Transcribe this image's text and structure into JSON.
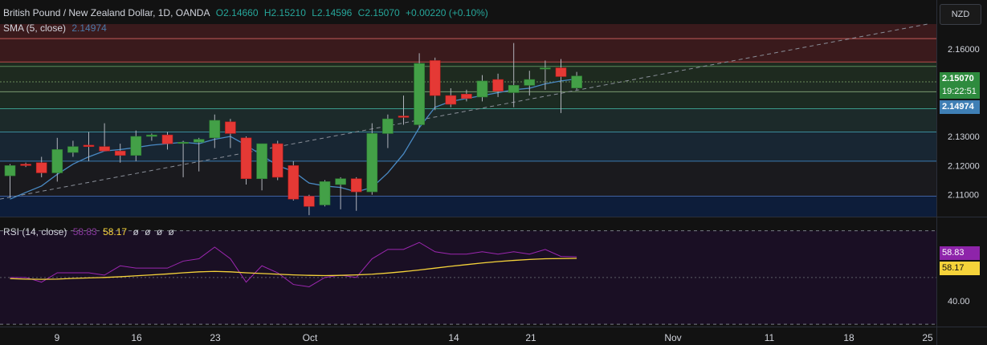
{
  "header": {
    "title": "British Pound / New Zealand Dollar, 1D, OANDA",
    "open": "O2.14660",
    "high": "H2.15210",
    "low": "L2.14596",
    "close": "C2.15070",
    "change": "+0.00220 (+0.10%)",
    "sma_label": "SMA (5, close)",
    "sma_value": "2.14974"
  },
  "currency_button": "NZD",
  "price_labels": {
    "last": "2.15070",
    "countdown": "19:22:51",
    "sma": "2.14974",
    "rsi": "58.83",
    "rsi_ma": "58.17"
  },
  "rsi_header": {
    "label": "RSI (14, close)",
    "value": "58.83",
    "ma_value": "58.17",
    "extras": [
      "ø",
      "ø",
      "ø",
      "ø"
    ]
  },
  "colors": {
    "up": "#26a69a",
    "up_fill": "#43a047",
    "down": "#e53935",
    "sma": "#4a8ac4",
    "rsi": "#9c27b0",
    "rsi_ma": "#f5d33a",
    "background": "#121212"
  },
  "chart_data": [
    {
      "type": "candlestick",
      "title": "British Pound / New Zealand Dollar, 1D, OANDA",
      "ylim": [
        2.1025,
        2.1685
      ],
      "y_ticks": [
        "2.16000",
        "2.15000",
        "2.13000",
        "2.12000",
        "2.11000"
      ],
      "x_ticks": [
        "9",
        "16",
        "23",
        "Oct",
        "14",
        "21",
        "Nov",
        "11",
        "18",
        "25"
      ],
      "candles": [
        {
          "o": 2.1165,
          "h": 2.1205,
          "l": 2.109,
          "c": 2.12
        },
        {
          "o": 2.1205,
          "h": 2.121,
          "l": 2.1195,
          "c": 2.12
        },
        {
          "o": 2.121,
          "h": 2.123,
          "l": 2.116,
          "c": 2.1175
        },
        {
          "o": 2.1175,
          "h": 2.1295,
          "l": 2.1145,
          "c": 2.1255
        },
        {
          "o": 2.1245,
          "h": 2.1285,
          "l": 2.123,
          "c": 2.1265
        },
        {
          "o": 2.127,
          "h": 2.1315,
          "l": 2.1215,
          "c": 2.1265
        },
        {
          "o": 2.1265,
          "h": 2.1345,
          "l": 2.125,
          "c": 2.125
        },
        {
          "o": 2.125,
          "h": 2.1275,
          "l": 2.121,
          "c": 2.1235
        },
        {
          "o": 2.1235,
          "h": 2.132,
          "l": 2.1215,
          "c": 2.13
        },
        {
          "o": 2.13,
          "h": 2.131,
          "l": 2.1285,
          "c": 2.1305
        },
        {
          "o": 2.1305,
          "h": 2.1315,
          "l": 2.1255,
          "c": 2.1275
        },
        {
          "o": 2.128,
          "h": 2.1285,
          "l": 2.116,
          "c": 2.128
        },
        {
          "o": 2.128,
          "h": 2.1295,
          "l": 2.118,
          "c": 2.129
        },
        {
          "o": 2.1295,
          "h": 2.1375,
          "l": 2.126,
          "c": 2.1355
        },
        {
          "o": 2.135,
          "h": 2.136,
          "l": 2.126,
          "c": 2.131
        },
        {
          "o": 2.1295,
          "h": 2.13,
          "l": 2.1135,
          "c": 2.1155
        },
        {
          "o": 2.1155,
          "h": 2.1275,
          "l": 2.1115,
          "c": 2.1275
        },
        {
          "o": 2.1275,
          "h": 2.1285,
          "l": 2.115,
          "c": 2.116
        },
        {
          "o": 2.12,
          "h": 2.1215,
          "l": 2.108,
          "c": 2.1085
        },
        {
          "o": 2.1095,
          "h": 2.11,
          "l": 2.103,
          "c": 2.106
        },
        {
          "o": 2.1065,
          "h": 2.115,
          "l": 2.106,
          "c": 2.1145
        },
        {
          "o": 2.1135,
          "h": 2.116,
          "l": 2.105,
          "c": 2.1155
        },
        {
          "o": 2.1155,
          "h": 2.116,
          "l": 2.1045,
          "c": 2.111
        },
        {
          "o": 2.111,
          "h": 2.1345,
          "l": 2.11,
          "c": 2.131
        },
        {
          "o": 2.131,
          "h": 2.1375,
          "l": 2.126,
          "c": 2.136
        },
        {
          "o": 2.137,
          "h": 2.144,
          "l": 2.134,
          "c": 2.1365
        },
        {
          "o": 2.134,
          "h": 2.1585,
          "l": 2.133,
          "c": 2.155
        },
        {
          "o": 2.156,
          "h": 2.157,
          "l": 2.139,
          "c": 2.144
        },
        {
          "o": 2.144,
          "h": 2.1465,
          "l": 2.14,
          "c": 2.141
        },
        {
          "o": 2.1445,
          "h": 2.146,
          "l": 2.142,
          "c": 2.143
        },
        {
          "o": 2.1435,
          "h": 2.151,
          "l": 2.142,
          "c": 2.149
        },
        {
          "o": 2.1495,
          "h": 2.1515,
          "l": 2.1435,
          "c": 2.1455
        },
        {
          "o": 2.145,
          "h": 2.162,
          "l": 2.14,
          "c": 2.1475
        },
        {
          "o": 2.1475,
          "h": 2.1525,
          "l": 2.144,
          "c": 2.1495
        },
        {
          "o": 2.1535,
          "h": 2.156,
          "l": 2.146,
          "c": 2.1535
        },
        {
          "o": 2.1535,
          "h": 2.1565,
          "l": 2.138,
          "c": 2.1505
        },
        {
          "o": 2.1466,
          "h": 2.1521,
          "l": 2.146,
          "c": 2.1507
        }
      ],
      "sma": {
        "name": "SMA (5, close)",
        "values": [
          2.1085,
          2.1108,
          2.113,
          2.117,
          2.1205,
          2.123,
          2.125,
          2.1255,
          2.1262,
          2.127,
          2.1275,
          2.128,
          2.1275,
          2.129,
          2.13,
          2.127,
          2.1235,
          2.12,
          2.118,
          2.114,
          2.113,
          2.1125,
          2.111,
          2.1125,
          2.1175,
          2.124,
          2.133,
          2.14,
          2.142,
          2.143,
          2.144,
          2.145,
          2.146,
          2.1465,
          2.148,
          2.149,
          2.1497
        ]
      },
      "price_levels": [
        2.1635,
        2.1555,
        2.154,
        2.1487,
        2.1453,
        2.1395,
        2.1315,
        2.1215,
        2.1095
      ]
    },
    {
      "type": "line",
      "title": "RSI (14, close)",
      "ylim": [
        29,
        75
      ],
      "y_ticks": [
        "40.00"
      ],
      "bands": [
        70,
        30
      ],
      "midline": 50,
      "series": [
        {
          "name": "RSI",
          "values": [
            50,
            50,
            48,
            52,
            52,
            52,
            51,
            55,
            54,
            54,
            54,
            57,
            58,
            63,
            58,
            48,
            55,
            52,
            47,
            46,
            50,
            51,
            50,
            58,
            62,
            62,
            65,
            61,
            60,
            60,
            61,
            60,
            61,
            60,
            62,
            59,
            58.83
          ]
        },
        {
          "name": "MA",
          "values": [
            49.5,
            49.3,
            49.2,
            49.3,
            49.6,
            49.8,
            50.0,
            50.3,
            50.7,
            51.1,
            51.5,
            52.0,
            52.4,
            52.6,
            52.4,
            52.0,
            51.7,
            51.4,
            51.1,
            50.9,
            50.8,
            50.9,
            51.1,
            51.4,
            51.9,
            52.5,
            53.2,
            54.0,
            54.8,
            55.5,
            56.2,
            56.8,
            57.3,
            57.7,
            58.0,
            58.1,
            58.17
          ]
        }
      ]
    }
  ]
}
